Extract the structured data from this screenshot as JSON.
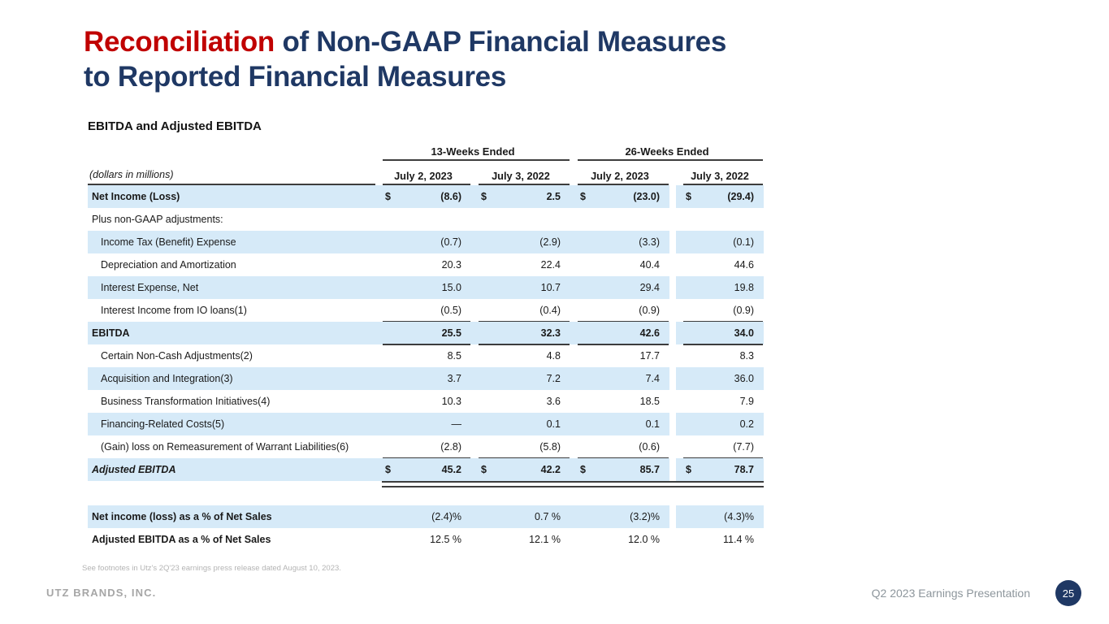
{
  "slide": {
    "title": {
      "line1_highlight": "Reconciliation",
      "line1_rest": " of Non-GAAP Financial Measures",
      "line2": "to Reported Financial Measures"
    },
    "subtitle": "EBITDA and Adjusted EBITDA",
    "footnote": "See footnotes in Utz's 2Q'23 earnings press release dated August 10, 2023.",
    "footer": {
      "company": "UTZ BRANDS, INC.",
      "presentation": "Q2 2023 Earnings Presentation",
      "page_number": "25"
    }
  },
  "colors": {
    "accent_red": "#C00000",
    "navy": "#1F3864",
    "row_shade": "#D6EAF8",
    "rule": "#3d3d3d"
  },
  "table": {
    "units_label": "(dollars in millions)",
    "group_headers": [
      "13-Weeks Ended",
      "26-Weeks Ended"
    ],
    "col_headers": [
      "July 2, 2023",
      "July 3, 2022",
      "July 2, 2023",
      "July 3, 2022"
    ],
    "rows": [
      {
        "label": "Net Income  (Loss)",
        "bold": true,
        "shaded": true,
        "dollar": true,
        "values": [
          "(8.6)",
          "2.5",
          "(23.0)",
          "(29.4)"
        ]
      },
      {
        "label": "Plus non-GAAP adjustments:",
        "shaded": false,
        "values": null
      },
      {
        "label": "Income Tax (Benefit) Expense",
        "shaded": true,
        "indent": true,
        "values": [
          "(0.7)",
          "(2.9)",
          "(3.3)",
          "(0.1)"
        ]
      },
      {
        "label": "Depreciation and Amortization",
        "shaded": false,
        "indent": true,
        "values": [
          "20.3",
          "22.4",
          "40.4",
          "44.6"
        ]
      },
      {
        "label": "Interest Expense, Net",
        "shaded": true,
        "indent": true,
        "values": [
          "15.0",
          "10.7",
          "29.4",
          "19.8"
        ]
      },
      {
        "label": "Interest Income from IO loans(1)",
        "shaded": false,
        "indent": true,
        "underline": true,
        "values": [
          "(0.5)",
          "(0.4)",
          "(0.9)",
          "(0.9)"
        ]
      },
      {
        "label": "EBITDA",
        "bold": true,
        "shaded": true,
        "underline": true,
        "values": [
          "25.5",
          "32.3",
          "42.6",
          "34.0"
        ]
      },
      {
        "label": "Certain Non-Cash Adjustments(2)",
        "shaded": false,
        "indent": true,
        "values": [
          "8.5",
          "4.8",
          "17.7",
          "8.3"
        ]
      },
      {
        "label": "Acquisition and Integration(3)",
        "shaded": true,
        "indent": true,
        "values": [
          "3.7",
          "7.2",
          "7.4",
          "36.0"
        ]
      },
      {
        "label": "Business Transformation Initiatives(4)",
        "shaded": false,
        "indent": true,
        "values": [
          "10.3",
          "3.6",
          "18.5",
          "7.9"
        ]
      },
      {
        "label": "Financing-Related Costs(5)",
        "shaded": true,
        "indent": true,
        "values": [
          "—",
          "0.1",
          "0.1",
          "0.2"
        ]
      },
      {
        "label": "(Gain) loss on Remeasurement of Warrant Liabilities(6)",
        "shaded": false,
        "indent": true,
        "underline": true,
        "values": [
          "(2.8)",
          "(5.8)",
          "(0.6)",
          "(7.7)"
        ]
      },
      {
        "label": "Adjusted EBITDA",
        "bold": true,
        "italic": true,
        "shaded": true,
        "dollar": true,
        "double_underline": true,
        "values": [
          "45.2",
          "42.2",
          "85.7",
          "78.7"
        ]
      }
    ],
    "percent_rows": [
      {
        "label": "Net income (loss) as a % of Net Sales",
        "shaded": true,
        "pct": true,
        "values": [
          "(2.4)%",
          "0.7 %",
          "(3.2)%",
          "(4.3)%"
        ]
      },
      {
        "label": "Adjusted EBITDA as a % of Net Sales",
        "shaded": false,
        "pct": true,
        "values": [
          "12.5 %",
          "12.1 %",
          "12.0 %",
          "11.4 %"
        ]
      }
    ]
  }
}
